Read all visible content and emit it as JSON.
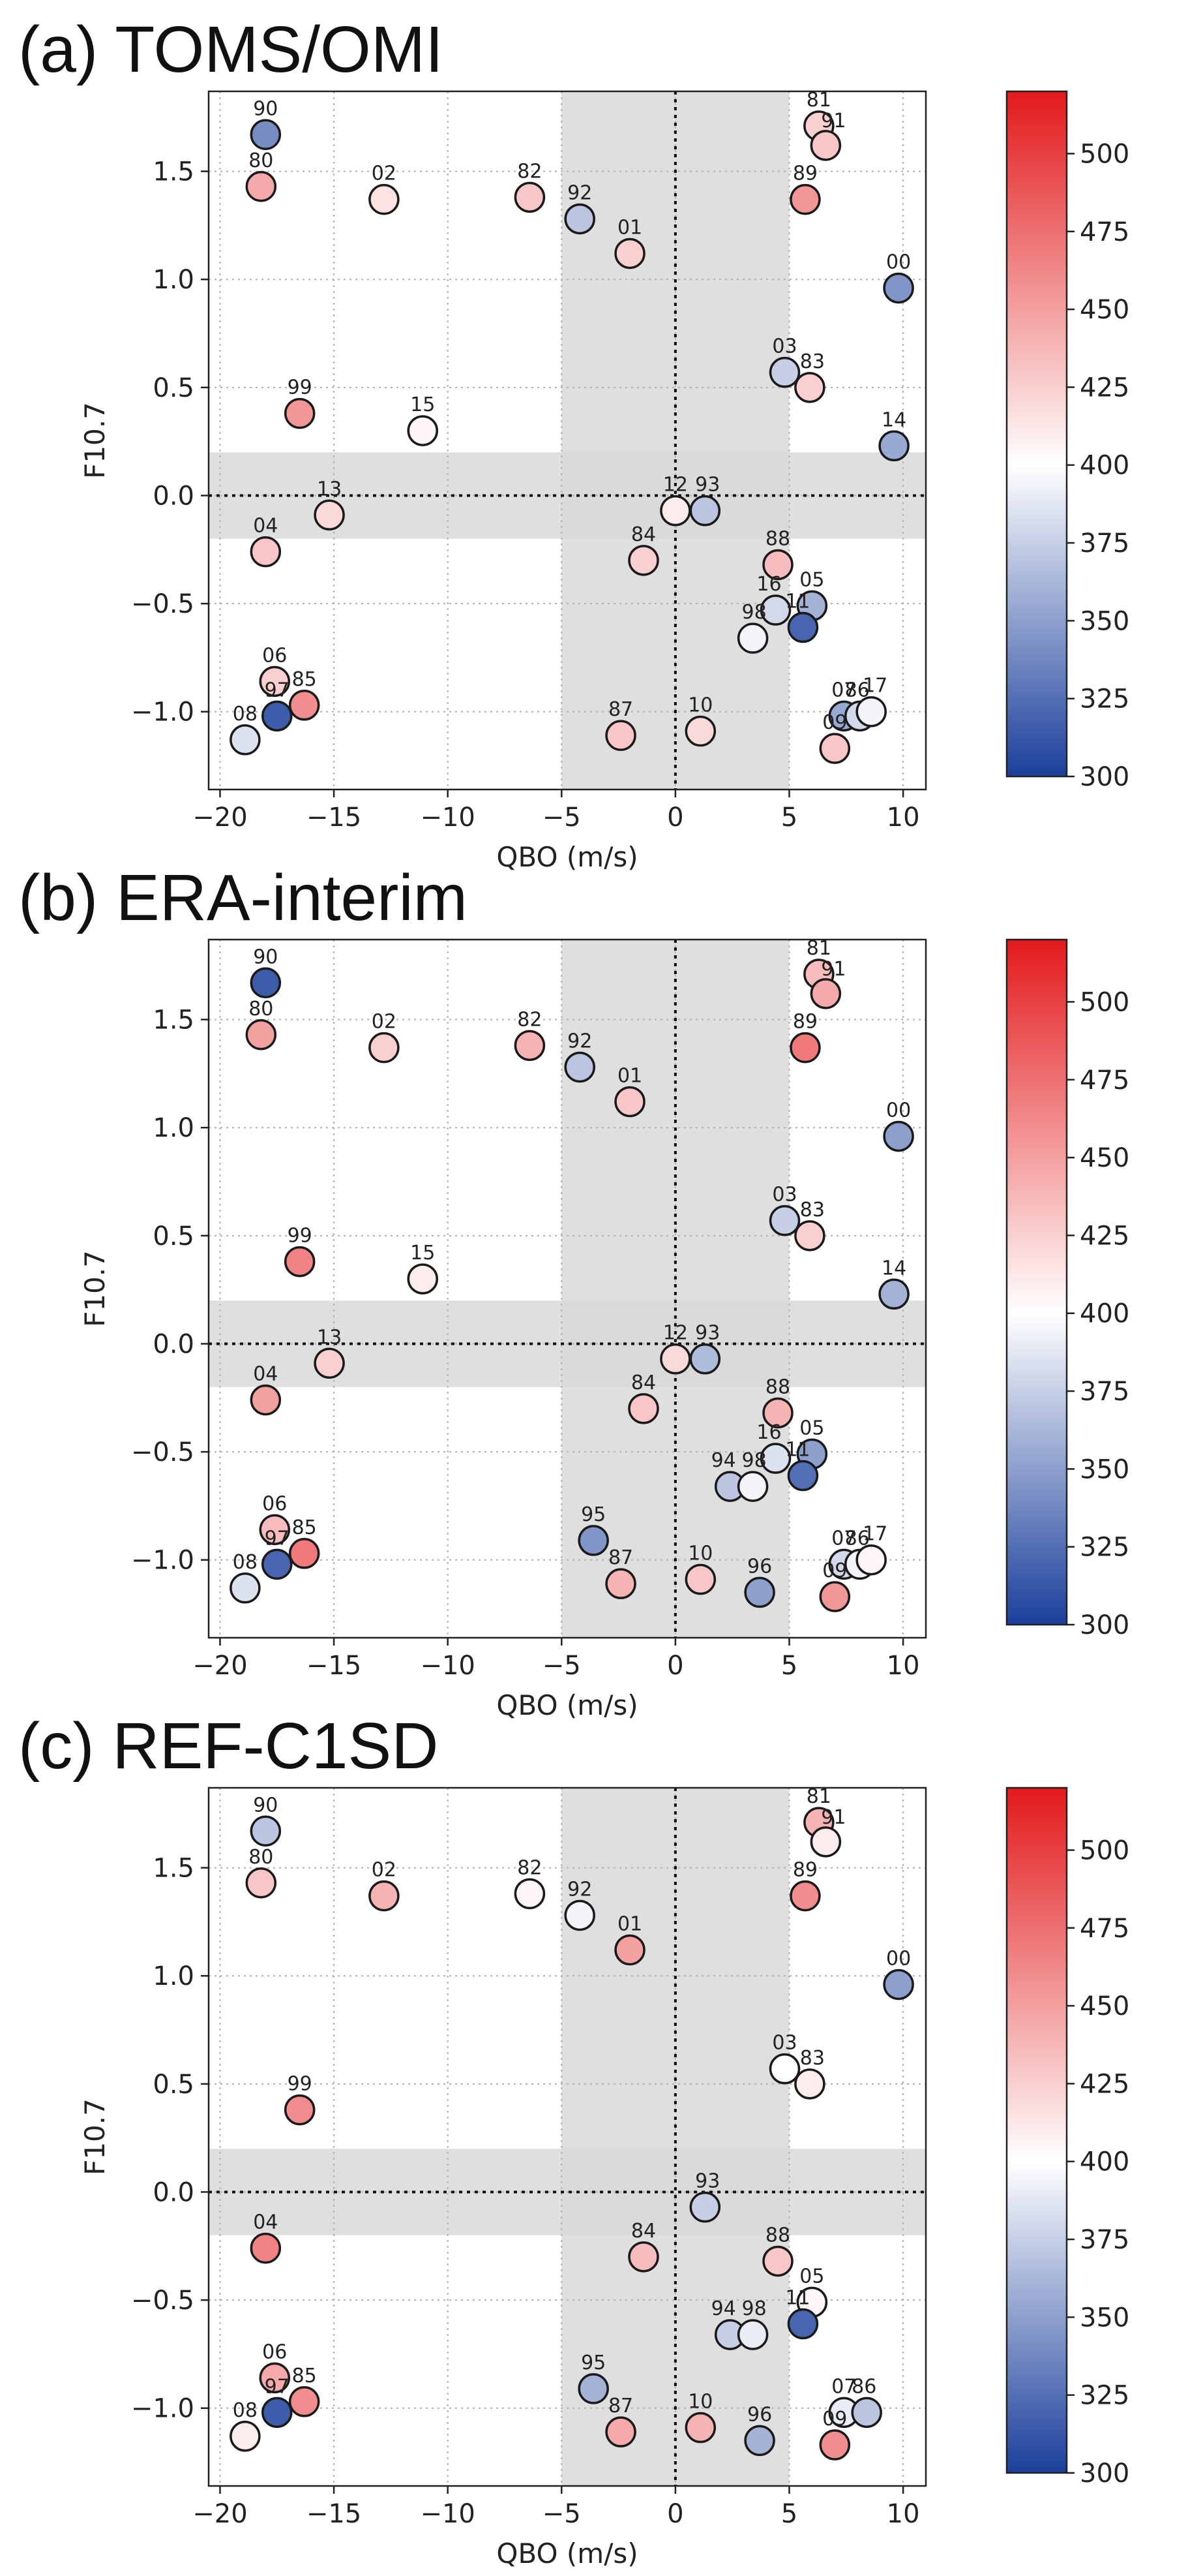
{
  "figure": {
    "colorbar": {
      "min": 300,
      "max": 520,
      "ticks": [
        300,
        325,
        350,
        375,
        400,
        425,
        450,
        475,
        500
      ],
      "colors": [
        "#1b3f9b",
        "#ffffff",
        "#e31a1c"
      ],
      "center_value": 400
    },
    "shading": {
      "qbo_band": [
        -5,
        5
      ],
      "f107_band": [
        -0.2,
        0.2
      ],
      "color": "#d9d9d9"
    }
  },
  "chart_data": [
    {
      "type": "scatter",
      "title": "(a) TOMS/OMI",
      "xlabel": "QBO (m/s)",
      "ylabel": "F10.7",
      "xlim": [
        -20.5,
        11
      ],
      "ylim": [
        -1.36,
        1.87
      ],
      "xticks": [
        -20,
        -15,
        -10,
        -5,
        0,
        5,
        10
      ],
      "yticks": [
        -1.0,
        -0.5,
        0.0,
        0.5,
        1.0,
        1.5
      ],
      "grid": true,
      "points": [
        {
          "label": "90",
          "x": -18.0,
          "y": 1.67,
          "value": 340
        },
        {
          "label": "80",
          "x": -18.2,
          "y": 1.43,
          "value": 445
        },
        {
          "label": "02",
          "x": -12.8,
          "y": 1.37,
          "value": 415
        },
        {
          "label": "82",
          "x": -6.4,
          "y": 1.38,
          "value": 430
        },
        {
          "label": "92",
          "x": -4.2,
          "y": 1.28,
          "value": 370
        },
        {
          "label": "01",
          "x": -2.0,
          "y": 1.12,
          "value": 425
        },
        {
          "label": "81",
          "x": 6.3,
          "y": 1.71,
          "value": 425
        },
        {
          "label": "91",
          "x": 6.6,
          "y": 1.62,
          "value": 430
        },
        {
          "label": "89",
          "x": 5.7,
          "y": 1.37,
          "value": 455
        },
        {
          "label": "00",
          "x": 9.8,
          "y": 0.96,
          "value": 345
        },
        {
          "label": "03",
          "x": 4.8,
          "y": 0.57,
          "value": 375
        },
        {
          "label": "83",
          "x": 5.9,
          "y": 0.5,
          "value": 425
        },
        {
          "label": "14",
          "x": 9.6,
          "y": 0.23,
          "value": 355
        },
        {
          "label": "99",
          "x": -16.5,
          "y": 0.38,
          "value": 455
        },
        {
          "label": "15",
          "x": -11.1,
          "y": 0.3,
          "value": 405
        },
        {
          "label": "13",
          "x": -15.2,
          "y": -0.09,
          "value": 420
        },
        {
          "label": "04",
          "x": -18.0,
          "y": -0.26,
          "value": 430
        },
        {
          "label": "12",
          "x": 0.0,
          "y": -0.07,
          "value": 410
        },
        {
          "label": "93",
          "x": 1.3,
          "y": -0.07,
          "value": 370
        },
        {
          "label": "84",
          "x": -1.4,
          "y": -0.3,
          "value": 425
        },
        {
          "label": "88",
          "x": 4.5,
          "y": -0.32,
          "value": 435
        },
        {
          "label": "05",
          "x": 6.0,
          "y": -0.51,
          "value": 360
        },
        {
          "label": "16",
          "x": 4.4,
          "y": -0.53,
          "value": 380
        },
        {
          "label": "11",
          "x": 5.6,
          "y": -0.61,
          "value": 320
        },
        {
          "label": "98",
          "x": 3.4,
          "y": -0.66,
          "value": 395
        },
        {
          "label": "06",
          "x": -17.6,
          "y": -0.86,
          "value": 425
        },
        {
          "label": "85",
          "x": -16.3,
          "y": -0.97,
          "value": 460
        },
        {
          "label": "97",
          "x": -17.5,
          "y": -1.02,
          "value": 315
        },
        {
          "label": "08",
          "x": -18.9,
          "y": -1.13,
          "value": 385
        },
        {
          "label": "87",
          "x": -2.4,
          "y": -1.11,
          "value": 430
        },
        {
          "label": "10",
          "x": 1.1,
          "y": -1.09,
          "value": 420
        },
        {
          "label": "07",
          "x": 7.4,
          "y": -1.02,
          "value": 355
        },
        {
          "label": "86",
          "x": 8.1,
          "y": -1.02,
          "value": 380
        },
        {
          "label": "17",
          "x": 8.6,
          "y": -1.0,
          "value": 395
        },
        {
          "label": "09",
          "x": 7.0,
          "y": -1.17,
          "value": 430
        }
      ]
    },
    {
      "type": "scatter",
      "title": "(b) ERA-interim",
      "xlabel": "QBO (m/s)",
      "ylabel": "F10.7",
      "xlim": [
        -20.5,
        11
      ],
      "ylim": [
        -1.36,
        1.87
      ],
      "xticks": [
        -20,
        -15,
        -10,
        -5,
        0,
        5,
        10
      ],
      "yticks": [
        -1.0,
        -0.5,
        0.0,
        0.5,
        1.0,
        1.5
      ],
      "grid": true,
      "points": [
        {
          "label": "90",
          "x": -18.0,
          "y": 1.67,
          "value": 315
        },
        {
          "label": "80",
          "x": -18.2,
          "y": 1.43,
          "value": 450
        },
        {
          "label": "02",
          "x": -12.8,
          "y": 1.37,
          "value": 425
        },
        {
          "label": "82",
          "x": -6.4,
          "y": 1.38,
          "value": 440
        },
        {
          "label": "92",
          "x": -4.2,
          "y": 1.28,
          "value": 370
        },
        {
          "label": "01",
          "x": -2.0,
          "y": 1.12,
          "value": 430
        },
        {
          "label": "81",
          "x": 6.3,
          "y": 1.71,
          "value": 435
        },
        {
          "label": "91",
          "x": 6.6,
          "y": 1.62,
          "value": 445
        },
        {
          "label": "89",
          "x": 5.7,
          "y": 1.37,
          "value": 470
        },
        {
          "label": "00",
          "x": 9.8,
          "y": 0.96,
          "value": 350
        },
        {
          "label": "03",
          "x": 4.8,
          "y": 0.57,
          "value": 375
        },
        {
          "label": "83",
          "x": 5.9,
          "y": 0.5,
          "value": 425
        },
        {
          "label": "14",
          "x": 9.6,
          "y": 0.23,
          "value": 360
        },
        {
          "label": "99",
          "x": -16.5,
          "y": 0.38,
          "value": 465
        },
        {
          "label": "15",
          "x": -11.1,
          "y": 0.3,
          "value": 410
        },
        {
          "label": "13",
          "x": -15.2,
          "y": -0.09,
          "value": 425
        },
        {
          "label": "04",
          "x": -18.0,
          "y": -0.26,
          "value": 450
        },
        {
          "label": "12",
          "x": 0.0,
          "y": -0.07,
          "value": 420
        },
        {
          "label": "93",
          "x": 1.3,
          "y": -0.07,
          "value": 365
        },
        {
          "label": "84",
          "x": -1.4,
          "y": -0.3,
          "value": 430
        },
        {
          "label": "88",
          "x": 4.5,
          "y": -0.32,
          "value": 440
        },
        {
          "label": "05",
          "x": 6.0,
          "y": -0.51,
          "value": 350
        },
        {
          "label": "16",
          "x": 4.4,
          "y": -0.53,
          "value": 385
        },
        {
          "label": "11",
          "x": 5.6,
          "y": -0.61,
          "value": 325
        },
        {
          "label": "94",
          "x": 2.4,
          "y": -0.66,
          "value": 370
        },
        {
          "label": "98",
          "x": 3.4,
          "y": -0.66,
          "value": 395
        },
        {
          "label": "95",
          "x": -3.6,
          "y": -0.91,
          "value": 345
        },
        {
          "label": "06",
          "x": -17.6,
          "y": -0.86,
          "value": 435
        },
        {
          "label": "85",
          "x": -16.3,
          "y": -0.97,
          "value": 470
        },
        {
          "label": "97",
          "x": -17.5,
          "y": -1.02,
          "value": 320
        },
        {
          "label": "08",
          "x": -18.9,
          "y": -1.13,
          "value": 385
        },
        {
          "label": "87",
          "x": -2.4,
          "y": -1.11,
          "value": 440
        },
        {
          "label": "10",
          "x": 1.1,
          "y": -1.09,
          "value": 430
        },
        {
          "label": "96",
          "x": 3.7,
          "y": -1.15,
          "value": 350
        },
        {
          "label": "07",
          "x": 7.4,
          "y": -1.02,
          "value": 380
        },
        {
          "label": "86",
          "x": 8.1,
          "y": -1.02,
          "value": 395
        },
        {
          "label": "17",
          "x": 8.6,
          "y": -1.0,
          "value": 405
        },
        {
          "label": "09",
          "x": 7.0,
          "y": -1.17,
          "value": 455
        }
      ]
    },
    {
      "type": "scatter",
      "title": "(c) REF-C1SD",
      "xlabel": "QBO (m/s)",
      "ylabel": "F10.7",
      "xlim": [
        -20.5,
        11
      ],
      "ylim": [
        -1.36,
        1.87
      ],
      "xticks": [
        -20,
        -15,
        -10,
        -5,
        0,
        5,
        10
      ],
      "yticks": [
        -1.0,
        -0.5,
        0.0,
        0.5,
        1.0,
        1.5
      ],
      "grid": true,
      "points": [
        {
          "label": "90",
          "x": -18.0,
          "y": 1.67,
          "value": 370
        },
        {
          "label": "80",
          "x": -18.2,
          "y": 1.43,
          "value": 430
        },
        {
          "label": "02",
          "x": -12.8,
          "y": 1.37,
          "value": 440
        },
        {
          "label": "82",
          "x": -6.4,
          "y": 1.38,
          "value": 405
        },
        {
          "label": "92",
          "x": -4.2,
          "y": 1.28,
          "value": 395
        },
        {
          "label": "01",
          "x": -2.0,
          "y": 1.12,
          "value": 450
        },
        {
          "label": "81",
          "x": 6.3,
          "y": 1.71,
          "value": 440
        },
        {
          "label": "91",
          "x": 6.6,
          "y": 1.62,
          "value": 410
        },
        {
          "label": "89",
          "x": 5.7,
          "y": 1.37,
          "value": 460
        },
        {
          "label": "00",
          "x": 9.8,
          "y": 0.96,
          "value": 350
        },
        {
          "label": "03",
          "x": 4.8,
          "y": 0.57,
          "value": 400
        },
        {
          "label": "83",
          "x": 5.9,
          "y": 0.5,
          "value": 410
        },
        {
          "label": "99",
          "x": -16.5,
          "y": 0.38,
          "value": 460
        },
        {
          "label": "04",
          "x": -18.0,
          "y": -0.26,
          "value": 465
        },
        {
          "label": "93",
          "x": 1.3,
          "y": -0.07,
          "value": 375
        },
        {
          "label": "84",
          "x": -1.4,
          "y": -0.3,
          "value": 435
        },
        {
          "label": "88",
          "x": 4.5,
          "y": -0.32,
          "value": 430
        },
        {
          "label": "05",
          "x": 6.0,
          "y": -0.51,
          "value": 405
        },
        {
          "label": "11",
          "x": 5.6,
          "y": -0.61,
          "value": 320
        },
        {
          "label": "94",
          "x": 2.4,
          "y": -0.66,
          "value": 375
        },
        {
          "label": "98",
          "x": 3.4,
          "y": -0.66,
          "value": 390
        },
        {
          "label": "95",
          "x": -3.6,
          "y": -0.91,
          "value": 360
        },
        {
          "label": "06",
          "x": -17.6,
          "y": -0.86,
          "value": 445
        },
        {
          "label": "85",
          "x": -16.3,
          "y": -0.97,
          "value": 460
        },
        {
          "label": "97",
          "x": -17.5,
          "y": -1.02,
          "value": 315
        },
        {
          "label": "08",
          "x": -18.9,
          "y": -1.13,
          "value": 410
        },
        {
          "label": "87",
          "x": -2.4,
          "y": -1.11,
          "value": 445
        },
        {
          "label": "10",
          "x": 1.1,
          "y": -1.09,
          "value": 440
        },
        {
          "label": "96",
          "x": 3.7,
          "y": -1.15,
          "value": 360
        },
        {
          "label": "07",
          "x": 7.4,
          "y": -1.02,
          "value": 390
        },
        {
          "label": "86",
          "x": 8.4,
          "y": -1.02,
          "value": 370
        },
        {
          "label": "09",
          "x": 7.0,
          "y": -1.17,
          "value": 460
        }
      ]
    }
  ]
}
